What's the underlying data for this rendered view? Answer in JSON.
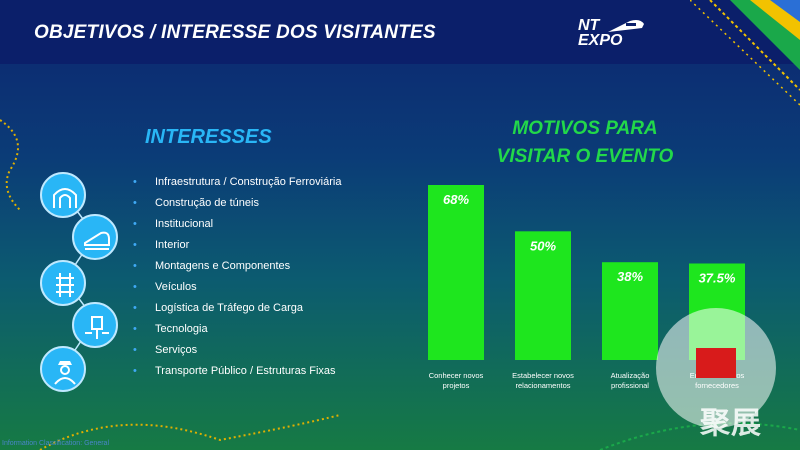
{
  "header": {
    "title": "OBJETIVOS / INTERESSE DOS VISITANTES",
    "logo_line1": "NT",
    "logo_line2": "EXPO"
  },
  "interests": {
    "title": "INTERESSES",
    "items": [
      "Infraestrutura / Construção Ferroviária",
      "Construção de túneis",
      "Institucional",
      "Interior",
      "Montagens e Componentes",
      "Veículos",
      "Logística de Tráfego de Carga",
      "Tecnologia",
      "Serviços",
      "Transporte Público / Estruturas Fixas"
    ],
    "bullet": "•",
    "icons": [
      "tunnel-icon",
      "train-icon",
      "rail-track-icon",
      "technology-icon",
      "conductor-icon"
    ]
  },
  "chart_data": {
    "type": "bar",
    "title_lines": [
      "MOTIVOS PARA",
      "VISITAR O EVENTO"
    ],
    "categories": [
      [
        "Conhecer novos",
        "projetos"
      ],
      [
        "Estabelecer novos",
        "relacionamentos"
      ],
      [
        "Atualização",
        "profissional"
      ],
      [
        "Encontrar novos",
        "fornecedores"
      ]
    ],
    "values": [
      68,
      50,
      38,
      37.5
    ],
    "data_labels": [
      "68%",
      "50%",
      "38%",
      "37.5%"
    ],
    "ylim": [
      0,
      68
    ],
    "grid": false,
    "legend": "none",
    "bar_color": "#1ee61e",
    "label_color": "#ffffff"
  },
  "footer": {
    "note": "Information Classification: General"
  },
  "watermark": {
    "text": "聚展"
  },
  "colors": {
    "accent_blue": "#29b6f6",
    "accent_green": "#22d84a",
    "header_bg": "#0b1f6a"
  }
}
